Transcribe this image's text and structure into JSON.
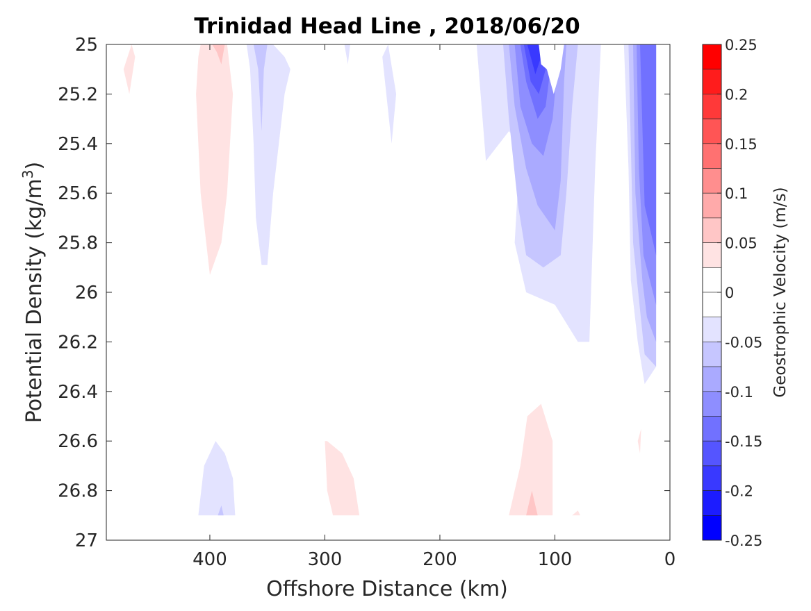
{
  "chart_data": {
    "type": "heatmap",
    "subtype": "filled-contour",
    "title": "Trinidad Head Line , 2018/06/20",
    "xlabel": "Offshore Distance (km)",
    "ylabel": "Potential Density (kg/m",
    "ylabel_superscript": "3",
    "ylabel_suffix": ")",
    "xlim": [
      490,
      0
    ],
    "x_reversed": true,
    "ylim": [
      25,
      27
    ],
    "y_reversed": true,
    "xticks": [
      400,
      300,
      200,
      100,
      0
    ],
    "xtick_labels": [
      "400",
      "300",
      "200",
      "100",
      "0"
    ],
    "yticks": [
      25,
      25.2,
      25.4,
      25.6,
      25.8,
      26,
      26.2,
      26.4,
      26.6,
      26.8,
      27
    ],
    "ytick_labels": [
      "25",
      "25.2",
      "25.4",
      "25.6",
      "25.8",
      "26",
      "26.2",
      "26.4",
      "26.6",
      "26.8",
      "27"
    ],
    "grid": false,
    "colorbar": {
      "label": "Geostrophic Velocity (m/s)",
      "range": [
        -0.25,
        0.25
      ],
      "ticks": [
        0.25,
        0.2,
        0.15,
        0.1,
        0.05,
        0,
        -0.05,
        -0.1,
        -0.15,
        -0.2,
        -0.25
      ],
      "tick_labels": [
        "0.25",
        "0.2",
        "0.15",
        "0.1",
        "0.05",
        "0",
        "-0.05",
        "-0.1",
        "-0.15",
        "-0.2",
        "-0.25"
      ],
      "levels": [
        {
          "min": 0.225,
          "max": 0.25,
          "color": "#ff0000"
        },
        {
          "min": 0.2,
          "max": 0.225,
          "color": "#ff1c1c"
        },
        {
          "min": 0.175,
          "max": 0.2,
          "color": "#ff3939"
        },
        {
          "min": 0.15,
          "max": 0.175,
          "color": "#ff5555"
        },
        {
          "min": 0.125,
          "max": 0.15,
          "color": "#ff7171"
        },
        {
          "min": 0.1,
          "max": 0.125,
          "color": "#ff8e8e"
        },
        {
          "min": 0.075,
          "max": 0.1,
          "color": "#ffaaaa"
        },
        {
          "min": 0.05,
          "max": 0.075,
          "color": "#ffc6c6"
        },
        {
          "min": 0.025,
          "max": 0.05,
          "color": "#ffe3e3"
        },
        {
          "min": 0,
          "max": 0.025,
          "color": "#ffffff"
        },
        {
          "min": -0.025,
          "max": 0,
          "color": "#ffffff"
        },
        {
          "min": -0.05,
          "max": -0.025,
          "color": "#e3e3ff"
        },
        {
          "min": -0.075,
          "max": -0.05,
          "color": "#c6c6ff"
        },
        {
          "min": -0.1,
          "max": -0.075,
          "color": "#aaaaff"
        },
        {
          "min": -0.125,
          "max": -0.1,
          "color": "#8e8eff"
        },
        {
          "min": -0.15,
          "max": -0.125,
          "color": "#7171ff"
        },
        {
          "min": -0.175,
          "max": -0.15,
          "color": "#5555ff"
        },
        {
          "min": -0.2,
          "max": -0.175,
          "color": "#3939ff"
        },
        {
          "min": -0.225,
          "max": -0.2,
          "color": "#1c1cff"
        },
        {
          "min": -0.25,
          "max": -0.225,
          "color": "#0000ff"
        }
      ]
    },
    "regions": [
      {
        "level": 0.0375,
        "points": [
          [
            475,
            25.1
          ],
          [
            470,
            25.2
          ],
          [
            465,
            25.05
          ],
          [
            468,
            25
          ]
        ]
      },
      {
        "level": 0.0375,
        "points": [
          [
            408,
            25
          ],
          [
            385,
            25
          ],
          [
            380,
            25.2
          ],
          [
            385,
            25.6
          ],
          [
            390,
            25.8
          ],
          [
            400,
            25.93
          ],
          [
            408,
            25.6
          ],
          [
            412,
            25.2
          ],
          [
            410,
            25.05
          ]
        ]
      },
      {
        "level": 0.0625,
        "points": [
          [
            398,
            25
          ],
          [
            387,
            25
          ],
          [
            390,
            25.08
          ],
          [
            394,
            25.03
          ]
        ]
      },
      {
        "level": -0.0375,
        "points": [
          [
            368,
            25
          ],
          [
            345,
            25
          ],
          [
            335,
            25.05
          ],
          [
            330,
            25.1
          ],
          [
            335,
            25.2
          ],
          [
            345,
            25.6
          ],
          [
            350,
            25.89
          ],
          [
            355,
            25.89
          ],
          [
            360,
            25.7
          ],
          [
            362,
            25.4
          ],
          [
            365,
            25.1
          ]
        ]
      },
      {
        "level": -0.0625,
        "points": [
          [
            362,
            25
          ],
          [
            350,
            25
          ],
          [
            353,
            25.1
          ],
          [
            355,
            25.35
          ],
          [
            358,
            25.1
          ]
        ]
      },
      {
        "level": -0.0375,
        "points": [
          [
            283,
            25
          ],
          [
            278,
            25
          ],
          [
            280,
            25.08
          ]
        ]
      },
      {
        "level": -0.0375,
        "points": [
          [
            250,
            25.05
          ],
          [
            242,
            25.4
          ],
          [
            238,
            25.2
          ],
          [
            245,
            25
          ]
        ]
      },
      {
        "level": 0.0375,
        "points": [
          [
            300,
            26.6
          ],
          [
            298,
            26.8
          ],
          [
            293,
            26.9
          ],
          [
            270,
            26.9
          ],
          [
            275,
            26.75
          ],
          [
            285,
            26.65
          ],
          [
            298,
            26.6
          ]
        ]
      },
      {
        "level": -0.0375,
        "points": [
          [
            395,
            26.6
          ],
          [
            405,
            26.7
          ],
          [
            410,
            26.9
          ],
          [
            378,
            26.9
          ],
          [
            380,
            26.75
          ],
          [
            387,
            26.65
          ]
        ]
      },
      {
        "level": -0.0625,
        "points": [
          [
            393,
            26.9
          ],
          [
            388,
            26.9
          ],
          [
            390,
            26.86
          ]
        ]
      },
      {
        "level": -0.0375,
        "points": [
          [
            168,
            25
          ],
          [
            160,
            25.47
          ],
          [
            140,
            25.35
          ],
          [
            130,
            25.4
          ],
          [
            135,
            25.8
          ],
          [
            125,
            26
          ],
          [
            100,
            26.05
          ],
          [
            80,
            26.2
          ],
          [
            70,
            26.2
          ],
          [
            65,
            25.5
          ],
          [
            60,
            25
          ],
          [
            170,
            25
          ]
        ]
      },
      {
        "level": -0.0625,
        "points": [
          [
            145,
            25
          ],
          [
            140,
            25.3
          ],
          [
            132,
            25.65
          ],
          [
            125,
            25.85
          ],
          [
            110,
            25.9
          ],
          [
            95,
            25.85
          ],
          [
            90,
            25.6
          ],
          [
            85,
            25.25
          ],
          [
            80,
            25
          ],
          [
            145,
            25
          ]
        ]
      },
      {
        "level": -0.0875,
        "points": [
          [
            140,
            25
          ],
          [
            135,
            25.25
          ],
          [
            125,
            25.5
          ],
          [
            115,
            25.65
          ],
          [
            100,
            25.75
          ],
          [
            95,
            25.55
          ],
          [
            92,
            25.15
          ],
          [
            90,
            25
          ],
          [
            140,
            25
          ]
        ]
      },
      {
        "level": -0.1125,
        "points": [
          [
            135,
            25
          ],
          [
            130,
            25.25
          ],
          [
            120,
            25.4
          ],
          [
            110,
            25.45
          ],
          [
            102,
            25.3
          ],
          [
            98,
            25.1
          ],
          [
            96,
            25
          ],
          [
            135,
            25
          ]
        ]
      },
      {
        "level": -0.1375,
        "points": [
          [
            130,
            25
          ],
          [
            125,
            25.15
          ],
          [
            115,
            25.3
          ],
          [
            108,
            25.25
          ],
          [
            104,
            25.1
          ],
          [
            102,
            25
          ],
          [
            130,
            25
          ]
        ]
      },
      {
        "level": -0.1625,
        "points": [
          [
            127,
            25
          ],
          [
            121,
            25.15
          ],
          [
            114,
            25.2
          ],
          [
            108,
            25.1
          ],
          [
            106,
            25
          ],
          [
            127,
            25
          ]
        ]
      },
      {
        "level": -0.1875,
        "points": [
          [
            124,
            25
          ],
          [
            117,
            25.12
          ],
          [
            112,
            25.05
          ],
          [
            110,
            25
          ],
          [
            124,
            25
          ]
        ]
      },
      {
        "level": 0,
        "points": [
          [
            114,
            25
          ],
          [
            112,
            25.08
          ],
          [
            107,
            25.1
          ],
          [
            101,
            25.2
          ],
          [
            95,
            25.1
          ],
          [
            92,
            25
          ],
          [
            114,
            25
          ]
        ]
      },
      {
        "level": 0.0375,
        "points": [
          [
            140,
            26.9
          ],
          [
            130,
            26.7
          ],
          [
            124,
            26.5
          ],
          [
            112,
            26.45
          ],
          [
            102,
            26.6
          ],
          [
            102,
            26.9
          ]
        ]
      },
      {
        "level": 0.0625,
        "points": [
          [
            125,
            26.9
          ],
          [
            120,
            26.8
          ],
          [
            115,
            26.9
          ]
        ]
      },
      {
        "level": 0.0375,
        "points": [
          [
            85,
            26.9
          ],
          [
            80,
            26.88
          ],
          [
            78,
            26.9
          ]
        ]
      },
      {
        "level": -0.0375,
        "points": [
          [
            40,
            25
          ],
          [
            36,
            25.5
          ],
          [
            34,
            25.95
          ],
          [
            28,
            26.2
          ],
          [
            22,
            26.37
          ],
          [
            12,
            26.3
          ],
          [
            12,
            25
          ]
        ]
      },
      {
        "level": -0.0625,
        "points": [
          [
            36,
            25
          ],
          [
            32,
            25.8
          ],
          [
            22,
            26.25
          ],
          [
            12,
            26.3
          ],
          [
            12,
            25
          ]
        ]
      },
      {
        "level": -0.0875,
        "points": [
          [
            32,
            25
          ],
          [
            30,
            25.6
          ],
          [
            24,
            25.95
          ],
          [
            20,
            26.1
          ],
          [
            12,
            26.2
          ],
          [
            12,
            25
          ]
        ]
      },
      {
        "level": -0.1125,
        "points": [
          [
            29,
            25
          ],
          [
            27,
            25.5
          ],
          [
            23,
            25.85
          ],
          [
            12,
            26.05
          ],
          [
            12,
            25
          ]
        ]
      },
      {
        "level": -0.1375,
        "points": [
          [
            26,
            25
          ],
          [
            22,
            25.65
          ],
          [
            12,
            25.85
          ],
          [
            12,
            25
          ]
        ]
      },
      {
        "level": 0.0375,
        "points": [
          [
            28,
            26.6
          ],
          [
            25,
            26.55
          ],
          [
            26,
            26.65
          ]
        ]
      }
    ]
  }
}
